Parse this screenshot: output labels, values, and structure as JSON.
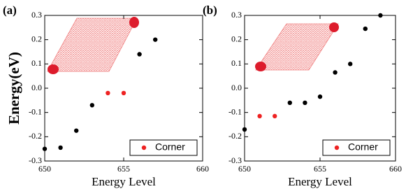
{
  "chart_data": [
    {
      "type": "scatter",
      "panel_label": "(a)",
      "ylabel": "Energy(eV)",
      "xlabel": "Energy Level",
      "xlim": [
        650,
        660
      ],
      "xticks": [
        650,
        655,
        660
      ],
      "ylim": [
        -0.3,
        0.3
      ],
      "yticks": [
        -0.3,
        -0.2,
        -0.1,
        {
          "value": 0,
          "label": "0.0"
        },
        0.1,
        0.2,
        0.3
      ],
      "legend": "lower right",
      "series": [
        {
          "color": "#000000",
          "x": [
            650,
            651,
            652,
            653,
            656,
            657
          ],
          "values": [
            -0.25,
            -0.245,
            -0.175,
            -0.07,
            0.14,
            0.2
          ]
        },
        {
          "name": "Corner",
          "color": "#ee2222",
          "x": [
            654,
            655
          ],
          "values": [
            -0.02,
            -0.02
          ]
        }
      ]
    },
    {
      "type": "scatter",
      "panel_label": "(b)",
      "xlabel": "Energy Level",
      "xlim": [
        650,
        660
      ],
      "xticks": [
        650,
        655,
        660
      ],
      "ylim": [
        -0.3,
        0.3
      ],
      "yticks": [
        -0.3,
        -0.2,
        -0.1,
        {
          "value": 0,
          "label": "0.0"
        },
        0.1,
        0.2,
        0.3
      ],
      "legend": "lower right",
      "series": [
        {
          "color": "#000000",
          "x": [
            650,
            653,
            654,
            655,
            656,
            657,
            658,
            659
          ],
          "values": [
            -0.17,
            -0.06,
            -0.06,
            -0.035,
            0.065,
            0.1,
            0.245,
            0.3
          ]
        },
        {
          "name": "Corner",
          "color": "#ee2222",
          "x": [
            651,
            652
          ],
          "values": [
            -0.115,
            -0.115
          ]
        }
      ]
    }
  ]
}
